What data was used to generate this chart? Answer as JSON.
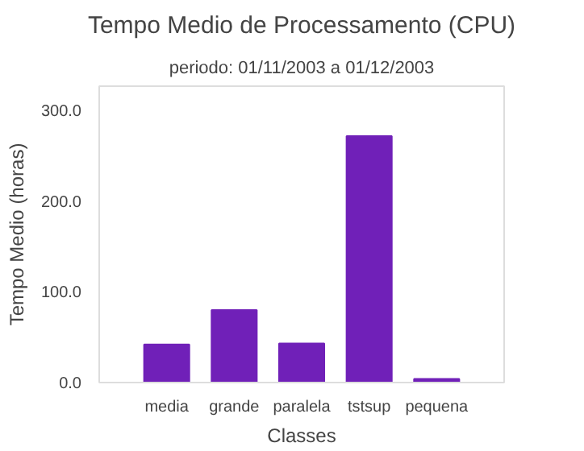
{
  "chart_data": {
    "type": "bar",
    "title": "Tempo Medio de Processamento (CPU)",
    "subtitle": "periodo: 01/11/2003 a 01/12/2003",
    "xlabel": "Classes",
    "ylabel": "Tempo Medio (horas)",
    "categories": [
      "media",
      "grande",
      "paralela",
      "tstsup",
      "pequena"
    ],
    "values": [
      42,
      80,
      43,
      272,
      4
    ],
    "color": "#7020b8",
    "ylim": [
      0,
      327
    ],
    "yticks": [
      {
        "value": 0,
        "label": "0.0"
      },
      {
        "value": 100,
        "label": "100.0"
      },
      {
        "value": 200,
        "label": "200.0"
      },
      {
        "value": 300,
        "label": "300.0"
      }
    ],
    "grid": false
  }
}
